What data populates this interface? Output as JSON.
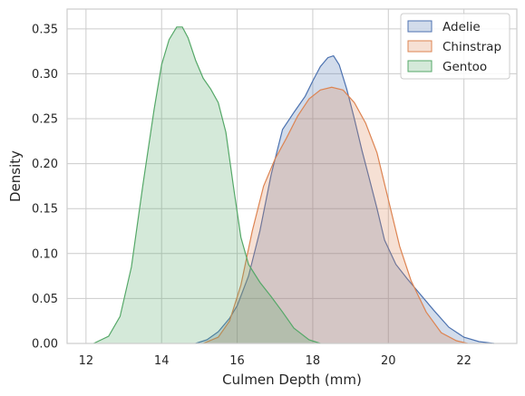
{
  "chart_data": {
    "type": "area",
    "title": "",
    "xlabel": "Culmen Depth (mm)",
    "ylabel": "Density",
    "xlim": [
      11.5,
      23.4
    ],
    "ylim": [
      0,
      0.372
    ],
    "xticks": [
      12,
      14,
      16,
      18,
      20,
      22
    ],
    "yticks": [
      0.0,
      0.05,
      0.1,
      0.15,
      0.2,
      0.25,
      0.3,
      0.35
    ],
    "grid": true,
    "legend_position": "top-right",
    "series": [
      {
        "name": "Adelie",
        "color": "#4c72b0",
        "x": [
          14.9,
          15.2,
          15.5,
          15.8,
          16.0,
          16.3,
          16.6,
          16.9,
          17.2,
          17.5,
          17.8,
          18.0,
          18.2,
          18.4,
          18.55,
          18.7,
          18.9,
          19.1,
          19.3,
          19.5,
          19.7,
          19.9,
          20.2,
          20.5,
          20.8,
          21.2,
          21.6,
          22.0,
          22.4,
          22.8
        ],
        "values": [
          0.0,
          0.004,
          0.013,
          0.028,
          0.042,
          0.075,
          0.125,
          0.188,
          0.238,
          0.257,
          0.275,
          0.292,
          0.308,
          0.318,
          0.32,
          0.31,
          0.283,
          0.25,
          0.215,
          0.183,
          0.15,
          0.115,
          0.088,
          0.072,
          0.057,
          0.037,
          0.018,
          0.007,
          0.002,
          0.0
        ]
      },
      {
        "name": "Chinstrap",
        "color": "#dd8452",
        "x": [
          15.1,
          15.5,
          15.8,
          16.1,
          16.4,
          16.7,
          17.0,
          17.3,
          17.6,
          17.9,
          18.2,
          18.5,
          18.8,
          19.1,
          19.4,
          19.7,
          20.0,
          20.3,
          20.6,
          21.0,
          21.4,
          21.8,
          22.1
        ],
        "values": [
          0.0,
          0.007,
          0.025,
          0.065,
          0.125,
          0.175,
          0.205,
          0.228,
          0.253,
          0.272,
          0.282,
          0.285,
          0.282,
          0.268,
          0.245,
          0.212,
          0.16,
          0.108,
          0.07,
          0.035,
          0.012,
          0.003,
          0.0
        ]
      },
      {
        "name": "Gentoo",
        "color": "#55a868",
        "x": [
          12.2,
          12.6,
          12.9,
          13.2,
          13.5,
          13.8,
          14.0,
          14.2,
          14.4,
          14.55,
          14.7,
          14.9,
          15.1,
          15.3,
          15.5,
          15.7,
          15.9,
          16.1,
          16.3,
          16.6,
          16.9,
          17.2,
          17.5,
          17.9,
          18.2
        ],
        "values": [
          0.0,
          0.008,
          0.03,
          0.085,
          0.175,
          0.26,
          0.31,
          0.338,
          0.352,
          0.352,
          0.34,
          0.315,
          0.295,
          0.283,
          0.268,
          0.235,
          0.175,
          0.118,
          0.088,
          0.068,
          0.052,
          0.035,
          0.017,
          0.004,
          0.0
        ]
      }
    ]
  }
}
